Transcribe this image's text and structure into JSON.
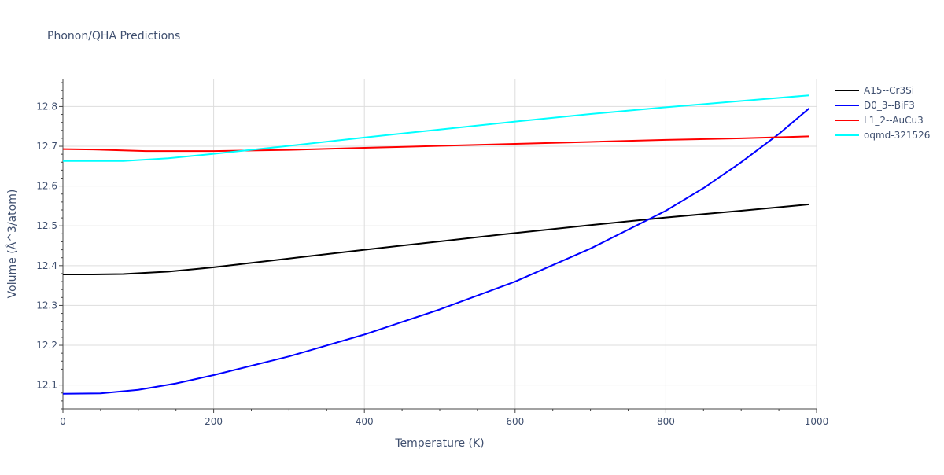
{
  "chart_data": {
    "type": "line",
    "title": "Phonon/QHA Predictions",
    "xlabel": "Temperature (K)",
    "ylabel": "Volume (Å^3/atom)",
    "xlim": [
      0,
      1000
    ],
    "ylim": [
      12.04,
      12.87
    ],
    "xticks": [
      0,
      200,
      400,
      600,
      800,
      1000
    ],
    "xtick_labels": [
      "0",
      "200",
      "400",
      "600",
      "800",
      "1000"
    ],
    "yticks": [
      12.1,
      12.2,
      12.3,
      12.4,
      12.5,
      12.6,
      12.7,
      12.8
    ],
    "ytick_labels": [
      "12.1",
      "12.2",
      "12.3",
      "12.4",
      "12.5",
      "12.6",
      "12.7",
      "12.8"
    ],
    "grid": true,
    "legend_position": "top-right",
    "series": [
      {
        "name": "A15--Cr3Si",
        "color": "#000000",
        "x": [
          0,
          40,
          80,
          140,
          200,
          300,
          400,
          500,
          600,
          700,
          800,
          900,
          990
        ],
        "y": [
          12.378,
          12.378,
          12.379,
          12.385,
          12.396,
          12.418,
          12.44,
          12.461,
          12.482,
          12.502,
          12.521,
          12.538,
          12.554
        ]
      },
      {
        "name": "D0_3--BiF3",
        "color": "#0000ff",
        "x": [
          0,
          50,
          100,
          150,
          200,
          300,
          400,
          500,
          600,
          700,
          800,
          850,
          900,
          950,
          990
        ],
        "y": [
          12.078,
          12.079,
          12.088,
          12.104,
          12.125,
          12.172,
          12.227,
          12.29,
          12.36,
          12.443,
          12.538,
          12.595,
          12.66,
          12.731,
          12.795
        ]
      },
      {
        "name": "L1_2--AuCu3",
        "color": "#ff0000",
        "x": [
          0,
          40,
          110,
          200,
          300,
          400,
          500,
          600,
          700,
          800,
          900,
          990
        ],
        "y": [
          12.693,
          12.692,
          12.688,
          12.688,
          12.691,
          12.696,
          12.701,
          12.706,
          12.711,
          12.716,
          12.72,
          12.725
        ]
      },
      {
        "name": "oqmd-321526",
        "color": "#00ffff",
        "x": [
          0,
          40,
          80,
          140,
          200,
          300,
          400,
          500,
          600,
          700,
          800,
          900,
          990
        ],
        "y": [
          12.663,
          12.663,
          12.663,
          12.67,
          12.681,
          12.701,
          12.722,
          12.742,
          12.762,
          12.781,
          12.798,
          12.814,
          12.828
        ]
      }
    ]
  }
}
